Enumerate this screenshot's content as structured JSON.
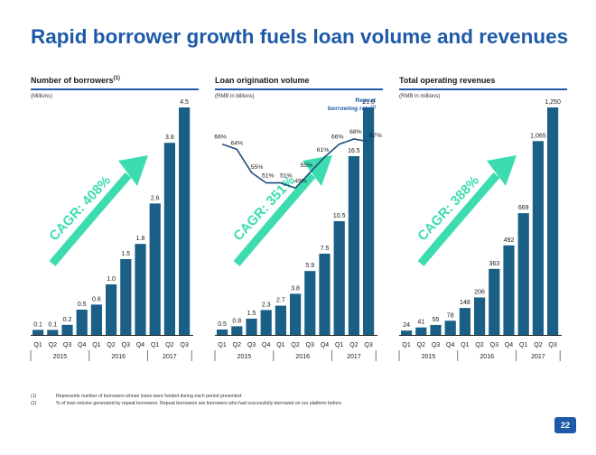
{
  "page": {
    "title": "Rapid borrower growth fuels loan volume and revenues",
    "page_number": "22",
    "footnotes": [
      {
        "mark": "(1)",
        "text": "Represents number of borrowers whose loans were funded during each period presented."
      },
      {
        "mark": "(2)",
        "text": "% of loan volume generated by repeat borrowers. Repeat borrowers are borrowers who had successfully borrowed on our platform before."
      }
    ]
  },
  "colors": {
    "bar": "#1a5f86",
    "title": "#1e5aa8",
    "arrow": "#3ddcb0",
    "line": "#1e4f7c"
  },
  "chart_data": [
    {
      "type": "bar",
      "title": "Number of borrowers",
      "title_sup": "(1)",
      "unit": "(Millions)",
      "categories": [
        "Q1",
        "Q2",
        "Q3",
        "Q4",
        "Q1",
        "Q2",
        "Q3",
        "Q4",
        "Q1",
        "Q2",
        "Q3"
      ],
      "years": [
        "2015",
        "2016",
        "2017"
      ],
      "values": [
        0.1,
        0.1,
        0.2,
        0.5,
        0.6,
        1.0,
        1.5,
        1.8,
        2.6,
        3.8,
        4.5
      ],
      "labels": [
        "0.1",
        "0.1",
        "0.2",
        "0.5",
        "0.6",
        "1.0",
        "1.5",
        "1.8",
        "2.6",
        "3.8",
        "4.5"
      ],
      "ylim": [
        0,
        4.5
      ],
      "cagr_label": "CAGR: 408%",
      "grid": false
    },
    {
      "type": "bar",
      "title": "Loan origination volume",
      "unit": "(RMB in billions)",
      "categories": [
        "Q1",
        "Q2",
        "Q3",
        "Q4",
        "Q1",
        "Q2",
        "Q3",
        "Q4",
        "Q1",
        "Q2",
        "Q3"
      ],
      "years": [
        "2015",
        "2016",
        "2017"
      ],
      "values": [
        0.5,
        0.8,
        1.5,
        2.3,
        2.7,
        3.8,
        5.9,
        7.5,
        10.5,
        16.5,
        21.0
      ],
      "labels": [
        "0.5",
        "0.8",
        "1.5",
        "2.3",
        "2.7",
        "3.8",
        "5.9",
        "7.5",
        "10.5",
        "16.5",
        "21.0"
      ],
      "ylim": [
        0,
        21.0
      ],
      "cagr_label": "CAGR: 351%",
      "grid": false,
      "line_series": {
        "name_line1": "Repeat",
        "name_line2": "borrowing rate",
        "name_sup": "(2)",
        "values": [
          66,
          64,
          55,
          51,
          51,
          49,
          55,
          61,
          66,
          68,
          67
        ],
        "labels": [
          "66%",
          "64%",
          "55%",
          "51%",
          "51%",
          "49%",
          "55%",
          "61%",
          "66%",
          "68%",
          "67%"
        ]
      }
    },
    {
      "type": "bar",
      "title": "Total operating revenues",
      "unit": "(RMB in millions)",
      "categories": [
        "Q1",
        "Q2",
        "Q3",
        "Q4",
        "Q1",
        "Q2",
        "Q3",
        "Q4",
        "Q1",
        "Q2",
        "Q3"
      ],
      "years": [
        "2015",
        "2016",
        "2017"
      ],
      "values": [
        24,
        41,
        55,
        78,
        148,
        206,
        363,
        492,
        669,
        1065,
        1250
      ],
      "labels": [
        "24",
        "41",
        "55",
        "78",
        "148",
        "206",
        "363",
        "492",
        "669",
        "1,065",
        "1,250"
      ],
      "ylim": [
        0,
        1250
      ],
      "cagr_label": "CAGR: 388%",
      "grid": false
    }
  ]
}
